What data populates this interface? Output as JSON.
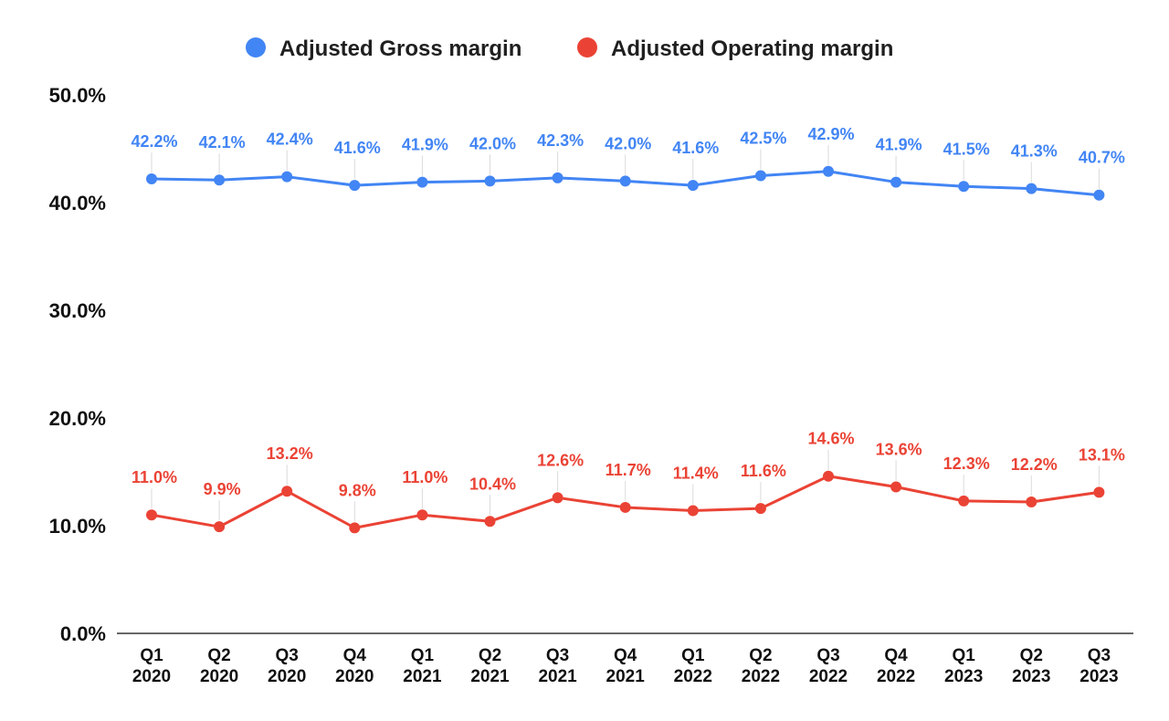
{
  "chart_data": {
    "type": "line",
    "title": "",
    "xlabel": "",
    "ylabel": "",
    "ylim": [
      0,
      50
    ],
    "y_ticks": [
      "0.0%",
      "10.0%",
      "20.0%",
      "30.0%",
      "40.0%",
      "50.0%"
    ],
    "grid": false,
    "legend_position": "top-center",
    "categories": [
      [
        "Q1",
        "2020"
      ],
      [
        "Q2",
        "2020"
      ],
      [
        "Q3",
        "2020"
      ],
      [
        "Q4",
        "2020"
      ],
      [
        "Q1",
        "2021"
      ],
      [
        "Q2",
        "2021"
      ],
      [
        "Q3",
        "2021"
      ],
      [
        "Q4",
        "2021"
      ],
      [
        "Q1",
        "2022"
      ],
      [
        "Q2",
        "2022"
      ],
      [
        "Q3",
        "2022"
      ],
      [
        "Q4",
        "2022"
      ],
      [
        "Q1",
        "2023"
      ],
      [
        "Q2",
        "2023"
      ],
      [
        "Q3",
        "2023"
      ]
    ],
    "series": [
      {
        "name": "Adjusted Gross margin",
        "color": "#4285f4",
        "values": [
          42.2,
          42.1,
          42.4,
          41.6,
          41.9,
          42.0,
          42.3,
          42.0,
          41.6,
          42.5,
          42.9,
          41.9,
          41.5,
          41.3,
          40.7
        ],
        "labels": [
          "42.2%",
          "42.1%",
          "42.4%",
          "41.6%",
          "41.9%",
          "42.0%",
          "42.3%",
          "42.0%",
          "41.6%",
          "42.5%",
          "42.9%",
          "41.9%",
          "41.5%",
          "41.3%",
          "40.7%"
        ]
      },
      {
        "name": "Adjusted Operating margin",
        "color": "#ea4335",
        "values": [
          11.0,
          9.9,
          13.2,
          9.8,
          11.0,
          10.4,
          12.6,
          11.7,
          11.4,
          11.6,
          14.6,
          13.6,
          12.3,
          12.2,
          13.1
        ],
        "labels": [
          "11.0%",
          "9.9%",
          "13.2%",
          "9.8%",
          "11.0%",
          "10.4%",
          "12.6%",
          "11.7%",
          "11.4%",
          "11.6%",
          "14.6%",
          "13.6%",
          "12.3%",
          "12.2%",
          "13.1%"
        ]
      }
    ]
  }
}
